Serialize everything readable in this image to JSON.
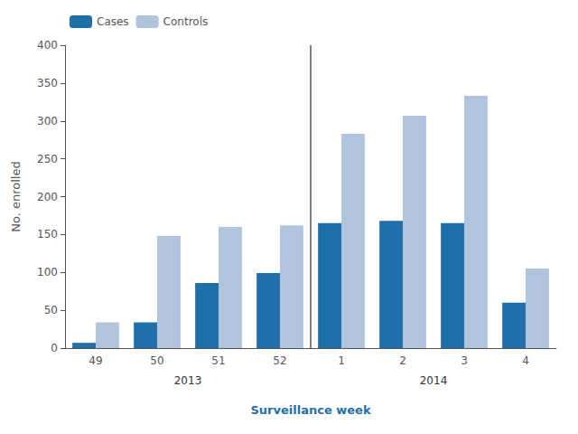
{
  "chart_data": {
    "type": "bar",
    "categories": [
      "49",
      "50",
      "51",
      "52",
      "1",
      "2",
      "3",
      "4"
    ],
    "series": [
      {
        "name": "Cases",
        "color": "#1f6fa8",
        "values": [
          7,
          34,
          86,
          99,
          165,
          168,
          165,
          60
        ]
      },
      {
        "name": "Controls",
        "color": "#b0c4de",
        "values": [
          34,
          148,
          160,
          162,
          283,
          307,
          333,
          105
        ]
      }
    ],
    "xlabel": "Surveillance week",
    "ylabel": "No. enrolled",
    "ylim": [
      0,
      400
    ],
    "yticks": [
      0,
      50,
      100,
      150,
      200,
      250,
      300,
      350,
      400
    ],
    "grid": false,
    "legend": "upper left",
    "annotations": [
      {
        "text": "2013",
        "categories": [
          "49",
          "52"
        ]
      },
      {
        "text": "2014",
        "categories": [
          "1",
          "4"
        ]
      }
    ]
  }
}
